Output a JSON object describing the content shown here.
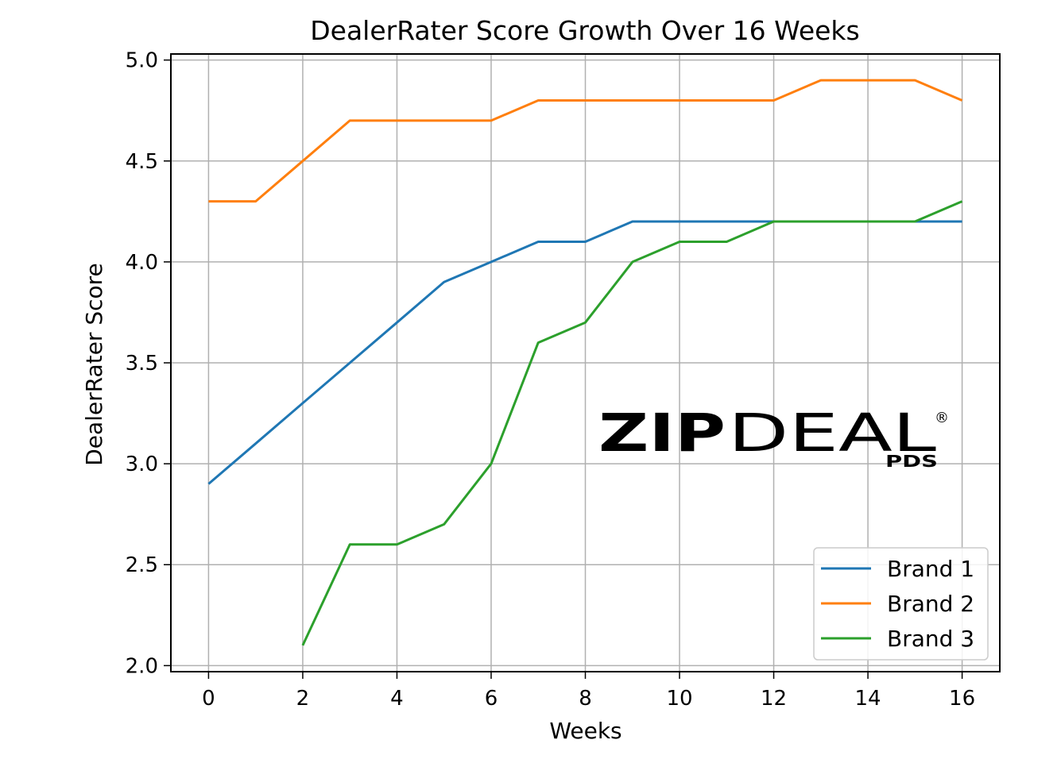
{
  "chart_data": {
    "type": "line",
    "title": "DealerRater Score Growth Over 16 Weeks",
    "xlabel": "Weeks",
    "ylabel": "DealerRater Score",
    "xlim": [
      -0.8,
      16.8
    ],
    "ylim": [
      1.97,
      5.03
    ],
    "xticks": [
      0,
      2,
      4,
      6,
      8,
      10,
      12,
      14,
      16
    ],
    "xtick_labels": [
      "0",
      "2",
      "4",
      "6",
      "8",
      "10",
      "12",
      "14",
      "16"
    ],
    "yticks": [
      2.0,
      2.5,
      3.0,
      3.5,
      4.0,
      4.5,
      5.0
    ],
    "ytick_labels": [
      "2.0",
      "2.5",
      "3.0",
      "3.5",
      "4.0",
      "4.5",
      "5.0"
    ],
    "grid": true,
    "legend_position": "bottom-right",
    "series": [
      {
        "name": "Brand 1",
        "color": "#1f77b4",
        "x": [
          0,
          1,
          2,
          3,
          4,
          5,
          6,
          7,
          8,
          9,
          10,
          11,
          12,
          13,
          14,
          15,
          16
        ],
        "values": [
          2.9,
          3.1,
          3.3,
          3.5,
          3.7,
          3.9,
          4.0,
          4.1,
          4.1,
          4.2,
          4.2,
          4.2,
          4.2,
          4.2,
          4.2,
          4.2,
          4.2
        ]
      },
      {
        "name": "Brand 2",
        "color": "#ff7f0e",
        "x": [
          0,
          1,
          2,
          3,
          4,
          5,
          6,
          7,
          8,
          9,
          10,
          11,
          12,
          13,
          14,
          15,
          16
        ],
        "values": [
          4.3,
          4.3,
          4.5,
          4.7,
          4.7,
          4.7,
          4.7,
          4.8,
          4.8,
          4.8,
          4.8,
          4.8,
          4.8,
          4.9,
          4.9,
          4.9,
          4.8
        ]
      },
      {
        "name": "Brand 3",
        "color": "#2ca02c",
        "x": [
          2,
          3,
          4,
          5,
          6,
          7,
          8,
          9,
          10,
          11,
          12,
          13,
          14,
          15,
          16
        ],
        "values": [
          2.1,
          2.6,
          2.6,
          2.7,
          3.0,
          3.6,
          3.7,
          4.0,
          4.1,
          4.1,
          4.2,
          4.2,
          4.2,
          4.2,
          4.3
        ]
      }
    ]
  },
  "watermark": {
    "text_bold": "ZIP",
    "text_light": "DEAL",
    "sub": "PDS",
    "mark": "®",
    "color": "#0f4c8c"
  }
}
